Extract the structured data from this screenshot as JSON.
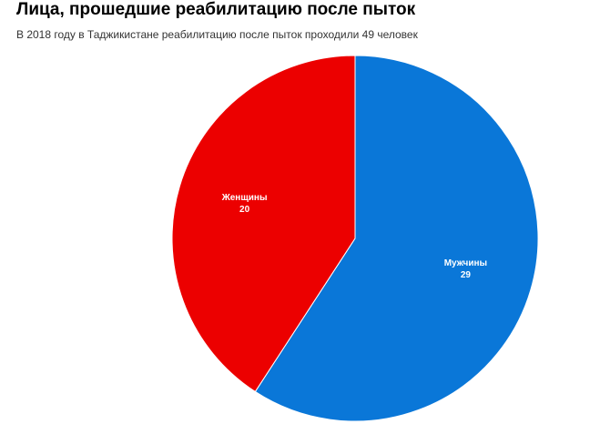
{
  "chart_data": {
    "type": "pie",
    "title": "Лица, прошедшие реабилитацию после пыток",
    "subtitle": "В 2018 году в Таджикистане реабилитацию после пыток проходили 49 человек",
    "categories": [
      "Мужчины",
      "Женщины"
    ],
    "values": [
      29,
      20
    ],
    "colors": [
      "#0a77d8",
      "#ec0000"
    ]
  }
}
